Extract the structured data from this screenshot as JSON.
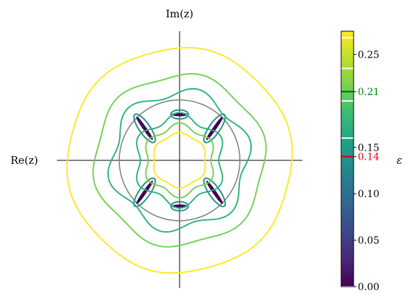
{
  "chart_data": {
    "type": "contour",
    "axes": {
      "x_label": "Re(z)",
      "y_label": "Im(z)"
    },
    "unit_circle": {
      "radius": 1,
      "color": "#808080"
    },
    "contour_levels": [
      {
        "epsilon": 0.001,
        "color": "#440154",
        "curves": [
          {
            "center": [
              0,
              0.76
            ],
            "rx": 0.11,
            "ry": 0.015,
            "angle_deg": 0
          },
          {
            "center": [
              0,
              -0.76
            ],
            "rx": 0.11,
            "ry": 0.015,
            "angle_deg": 0
          },
          {
            "center": [
              -0.58,
              0.53
            ],
            "rx": 0.22,
            "ry": 0.015,
            "angle_deg": -55
          },
          {
            "center": [
              0.58,
              0.53
            ],
            "rx": 0.22,
            "ry": 0.015,
            "angle_deg": 55
          },
          {
            "center": [
              -0.58,
              -0.53
            ],
            "rx": 0.22,
            "ry": 0.015,
            "angle_deg": 55
          },
          {
            "center": [
              0.58,
              -0.53
            ],
            "rx": 0.22,
            "ry": 0.015,
            "angle_deg": -55
          }
        ]
      },
      {
        "epsilon": 0.12,
        "color": "#21918c",
        "curves": [
          {
            "center": [
              0,
              0.76
            ],
            "rx": 0.145,
            "ry": 0.075,
            "angle_deg": 0
          },
          {
            "center": [
              0,
              -0.76
            ],
            "rx": 0.145,
            "ry": 0.075,
            "angle_deg": 0
          },
          {
            "center": [
              -0.58,
              0.53
            ],
            "rx": 0.28,
            "ry": 0.09,
            "angle_deg": -55
          },
          {
            "center": [
              0.58,
              0.53
            ],
            "rx": 0.28,
            "ry": 0.09,
            "angle_deg": 55
          },
          {
            "center": [
              -0.58,
              -0.53
            ],
            "rx": 0.28,
            "ry": 0.09,
            "angle_deg": 55
          },
          {
            "center": [
              0.58,
              -0.53
            ],
            "rx": 0.28,
            "ry": 0.09,
            "angle_deg": -55
          }
        ]
      },
      {
        "epsilon": 0.16,
        "color": "#2db27d",
        "curves": [
          {
            "type": "wavy",
            "r0": 1.13,
            "amp": 0.085,
            "k": 6,
            "phase_deg": 90
          },
          {
            "type": "wavy",
            "r0": 0.72,
            "amp": 0.07,
            "k": 6,
            "phase_deg": 180
          }
        ]
      },
      {
        "epsilon": 0.2,
        "color": "#73d055",
        "curves": [
          {
            "type": "wavy",
            "r0": 1.41,
            "amp": 0.05,
            "k": 6,
            "phase_deg": 90
          },
          {
            "type": "wavy",
            "r0": 0.57,
            "amp": 0.05,
            "k": 6,
            "phase_deg": 180
          }
        ]
      },
      {
        "epsilon": 0.27,
        "color": "#fde725",
        "curves": [
          {
            "type": "wavy",
            "r0": 1.86,
            "amp": 0.025,
            "k": 6,
            "phase_deg": 90
          },
          {
            "type": "wavy",
            "r0": 0.44,
            "amp": 0.02,
            "k": 6,
            "phase_deg": 180
          }
        ]
      }
    ],
    "colorbar": {
      "label": "ε",
      "range": [
        0,
        0.275
      ],
      "colormap": "viridis",
      "ticks": [
        {
          "value": 0.0,
          "label": "0.00",
          "color": "#000000"
        },
        {
          "value": 0.05,
          "label": "0.05",
          "color": "#000000"
        },
        {
          "value": 0.1,
          "label": "0.10",
          "color": "#000000"
        },
        {
          "value": 0.14,
          "label": "0.14",
          "color": "#e8000b"
        },
        {
          "value": 0.15,
          "label": "0.15",
          "color": "#000000"
        },
        {
          "value": 0.21,
          "label": "0.21",
          "color": "#008000"
        },
        {
          "value": 0.25,
          "label": "0.25",
          "color": "#000000"
        }
      ],
      "markers": [
        {
          "value": 0.0,
          "color": "#ffffff"
        },
        {
          "value": 0.14,
          "color": "#e8000b"
        },
        {
          "value": 0.16,
          "color": "#ffffff"
        },
        {
          "value": 0.2,
          "color": "#ffffff"
        },
        {
          "value": 0.21,
          "color": "#008000"
        },
        {
          "value": 0.235,
          "color": "#ffffff"
        },
        {
          "value": 0.268,
          "color": "#ffffff"
        }
      ]
    }
  }
}
